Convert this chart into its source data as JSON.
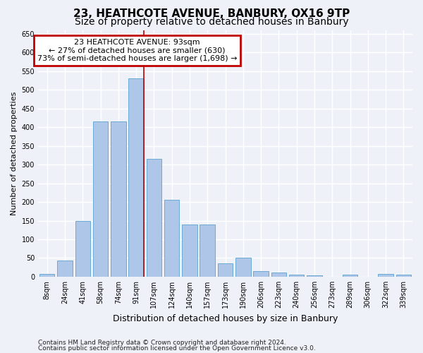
{
  "title": "23, HEATHCOTE AVENUE, BANBURY, OX16 9TP",
  "subtitle": "Size of property relative to detached houses in Banbury",
  "xlabel": "Distribution of detached houses by size in Banbury",
  "ylabel": "Number of detached properties",
  "categories": [
    "8sqm",
    "24sqm",
    "41sqm",
    "58sqm",
    "74sqm",
    "91sqm",
    "107sqm",
    "124sqm",
    "140sqm",
    "157sqm",
    "173sqm",
    "190sqm",
    "206sqm",
    "223sqm",
    "240sqm",
    "256sqm",
    "273sqm",
    "289sqm",
    "306sqm",
    "322sqm",
    "339sqm"
  ],
  "values": [
    8,
    44,
    150,
    415,
    415,
    530,
    315,
    205,
    140,
    140,
    35,
    50,
    15,
    12,
    5,
    3,
    0,
    5,
    0,
    8,
    5
  ],
  "bar_color": "#aec6e8",
  "bar_edge_color": "#6aaad4",
  "annotation_line_color": "#c00000",
  "annotation_box_edge_color": "#c00000",
  "annotation_text": "23 HEATHCOTE AVENUE: 93sqm\n← 27% of detached houses are smaller (630)\n73% of semi-detached houses are larger (1,698) →",
  "property_bar_index": 5,
  "bg_color": "#eef2f8",
  "ylim_max": 660,
  "footer1": "Contains HM Land Registry data © Crown copyright and database right 2024.",
  "footer2": "Contains public sector information licensed under the Open Government Licence v3.0.",
  "title_fontsize": 11,
  "subtitle_fontsize": 10,
  "xlabel_fontsize": 9,
  "ylabel_fontsize": 8,
  "tick_fontsize": 7,
  "annotation_fontsize": 8,
  "footer_fontsize": 6.5
}
